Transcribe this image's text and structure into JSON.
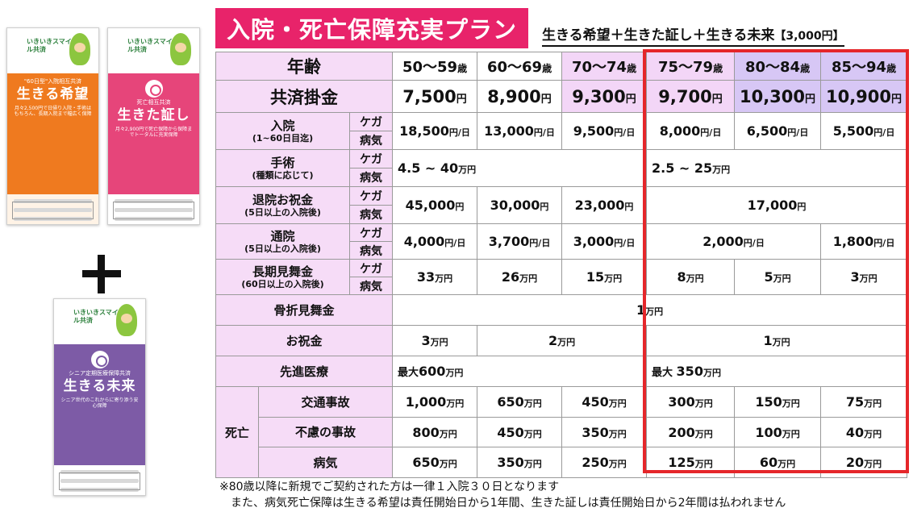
{
  "brochures": [
    {
      "logo": "いきいきスマイル共済",
      "top": "\"60日型\"入院相互共済",
      "title": "生きる希望",
      "sub": "月々2,500円で日帰り入院・手術はもちろん、長期入院まで幅広く保障"
    },
    {
      "logo": "いきいきスマイル共済",
      "top": "死亡相互共済",
      "title": "生きた証し",
      "sub": "月々2,900円で死亡保障から保障までトータルに充実保障"
    },
    {
      "logo": "いきいきスマイル共済",
      "top": "シニア定期医療保障共済",
      "title": "生きる未来",
      "sub": "シニア世代のこれからに寄り添う安心保障"
    }
  ],
  "title": "入院・死亡保障充実プラン",
  "subtitle": "生きる希望＋生きた証し＋生きる未来",
  "subtitle_price": "【3,000円】",
  "table": {
    "age_label": "年齢",
    "ages": [
      {
        "num": "50〜59",
        "unit": "歳"
      },
      {
        "num": "60〜69",
        "unit": "歳"
      },
      {
        "num": "70〜74",
        "unit": "歳"
      },
      {
        "num": "75〜79",
        "unit": "歳"
      },
      {
        "num": "80〜84",
        "unit": "歳"
      },
      {
        "num": "85〜94",
        "unit": "歳"
      }
    ],
    "fee_label": "共済掛金",
    "fees": [
      {
        "num": "7,500",
        "unit": "円"
      },
      {
        "num": "8,900",
        "unit": "円"
      },
      {
        "num": "9,300",
        "unit": "円"
      },
      {
        "num": "9,700",
        "unit": "円"
      },
      {
        "num": "10,300",
        "unit": "円"
      },
      {
        "num": "10,900",
        "unit": "円"
      }
    ],
    "injury": "ケガ",
    "illness": "病気",
    "hospital": {
      "label": "入院",
      "note": "(1~60日目迄)",
      "values": [
        {
          "num": "18,500",
          "unit": "円/日"
        },
        {
          "num": "13,000",
          "unit": "円/日"
        },
        {
          "num": "9,500",
          "unit": "円/日"
        },
        {
          "num": "8,000",
          "unit": "円/日"
        },
        {
          "num": "6,500",
          "unit": "円/日"
        },
        {
          "num": "5,500",
          "unit": "円/日"
        }
      ]
    },
    "surgery": {
      "label": "手術",
      "note": "(種類に応じて)",
      "a": {
        "num": "4.5 ~ 40",
        "unit": "万円"
      },
      "b": {
        "num": "2.5 ~ 25",
        "unit": "万円"
      }
    },
    "discharge": {
      "label": "退院お祝金",
      "note": "(5日以上の入院後)",
      "values": [
        {
          "num": "45,000",
          "unit": "円"
        },
        {
          "num": "30,000",
          "unit": "円"
        },
        {
          "num": "23,000",
          "unit": "円"
        },
        {
          "num": "17,000",
          "unit": "円"
        }
      ]
    },
    "outpatient": {
      "label": "通院",
      "note": "(5日以上の入院後)",
      "values": [
        {
          "num": "4,000",
          "unit": "円/日"
        },
        {
          "num": "3,700",
          "unit": "円/日"
        },
        {
          "num": "3,000",
          "unit": "円/日"
        },
        {
          "num": "2,000",
          "unit": "円/日"
        },
        {
          "num": "1,800",
          "unit": "円/日"
        }
      ]
    },
    "longterm": {
      "label": "長期見舞金",
      "note": "(60日以上の入院後)",
      "values": [
        {
          "num": "33",
          "unit": "万円"
        },
        {
          "num": "26",
          "unit": "万円"
        },
        {
          "num": "15",
          "unit": "万円"
        },
        {
          "num": "8",
          "unit": "万円"
        },
        {
          "num": "5",
          "unit": "万円"
        },
        {
          "num": "3",
          "unit": "万円"
        }
      ]
    },
    "fracture": {
      "label": "骨折見舞金",
      "value": {
        "num": "1",
        "unit": "万円"
      }
    },
    "celebration": {
      "label": "お祝金",
      "values": [
        {
          "num": "3",
          "unit": "万円"
        },
        {
          "num": "2",
          "unit": "万円"
        },
        {
          "num": "1",
          "unit": "万円"
        }
      ]
    },
    "advanced": {
      "label": "先進医療",
      "a": {
        "prefix": "最大",
        "num": "600",
        "unit": "万円"
      },
      "b": {
        "prefix": "最大 ",
        "num": "350",
        "unit": "万円"
      }
    },
    "death": {
      "label": "死亡",
      "traffic": {
        "label": "交通事故",
        "values": [
          {
            "num": "1,000",
            "unit": "万円"
          },
          {
            "num": "650",
            "unit": "万円"
          },
          {
            "num": "450",
            "unit": "万円"
          },
          {
            "num": "300",
            "unit": "万円"
          },
          {
            "num": "150",
            "unit": "万円"
          },
          {
            "num": "75",
            "unit": "万円"
          }
        ]
      },
      "accident": {
        "label": "不慮の事故",
        "values": [
          {
            "num": "800",
            "unit": "万円"
          },
          {
            "num": "450",
            "unit": "万円"
          },
          {
            "num": "350",
            "unit": "万円"
          },
          {
            "num": "200",
            "unit": "万円"
          },
          {
            "num": "100",
            "unit": "万円"
          },
          {
            "num": "40",
            "unit": "万円"
          }
        ]
      },
      "illness": {
        "label": "病気",
        "values": [
          {
            "num": "650",
            "unit": "万円"
          },
          {
            "num": "350",
            "unit": "万円"
          },
          {
            "num": "250",
            "unit": "万円"
          },
          {
            "num": "125",
            "unit": "万円"
          },
          {
            "num": "60",
            "unit": "万円"
          },
          {
            "num": "20",
            "unit": "万円"
          }
        ]
      }
    }
  },
  "footnote": {
    "line1": "※80歳以降に新規でご契約された方は一律１入院３０日となります",
    "line2": "また、病気死亡保障は生きる希望は責任開始日から1年間、生きた証しは責任開始日から2年間は払われません"
  },
  "colors": {
    "title_bg": "#e8236a",
    "label_bg": "#f6dcf7",
    "age_pink": "#f3d6f7",
    "age_purple": "#d7c7f5",
    "highlight": "#e5262a"
  }
}
